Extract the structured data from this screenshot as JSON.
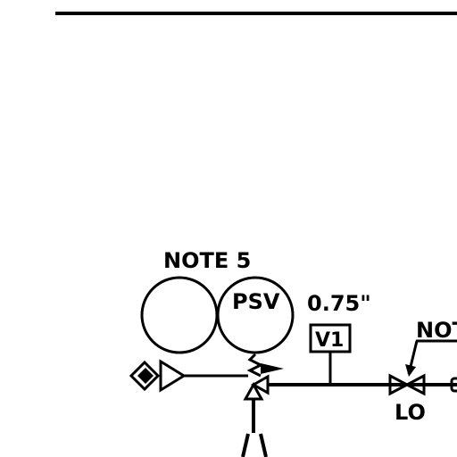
{
  "drawing": {
    "note_ref_top": "NOTE 5",
    "instrument_tag": "PSV",
    "pipe_size": "0.75\"",
    "vent_tag": "V1",
    "note_ref_right": "NOT",
    "valve_position": "LO"
  },
  "colors": {
    "line": "#000000",
    "background": "#ffffff"
  },
  "icons": {
    "interlock_symbol": "diamond-icon",
    "signal_arrow": "triangle-arrow-icon",
    "relief_valve": "relief-valve-icon",
    "gate_valve": "gate-valve-icon"
  }
}
